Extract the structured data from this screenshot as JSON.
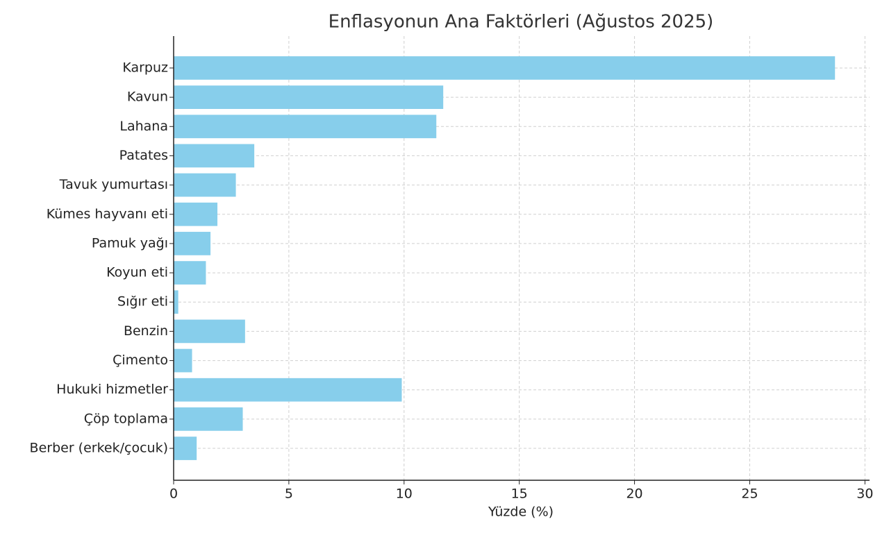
{
  "chart_data": {
    "type": "barh",
    "title": "Enflasyonun Ana Faktörleri (Ağustos 2025)",
    "x_label": "Yüzde (%)",
    "categories": [
      "Karpuz",
      "Kavun",
      "Lahana",
      "Patates",
      "Tavuk yumurtası",
      "Kümes hayvanı eti",
      "Pamuk yağı",
      "Koyun eti",
      "Sığır eti",
      "Benzin",
      "Çimento",
      "Hukuki hizmetler",
      "Çöp toplama",
      "Berber (erkek/çocuk)"
    ],
    "values": [
      28.7,
      11.7,
      11.4,
      3.5,
      2.7,
      1.9,
      1.6,
      1.4,
      0.2,
      3.1,
      0.8,
      9.9,
      3.0,
      1.0
    ],
    "color": "#87ceeb",
    "xlim": [
      0,
      30.2
    ],
    "xticks": [
      0,
      5,
      10,
      15,
      20,
      25,
      30
    ],
    "grid": true
  }
}
